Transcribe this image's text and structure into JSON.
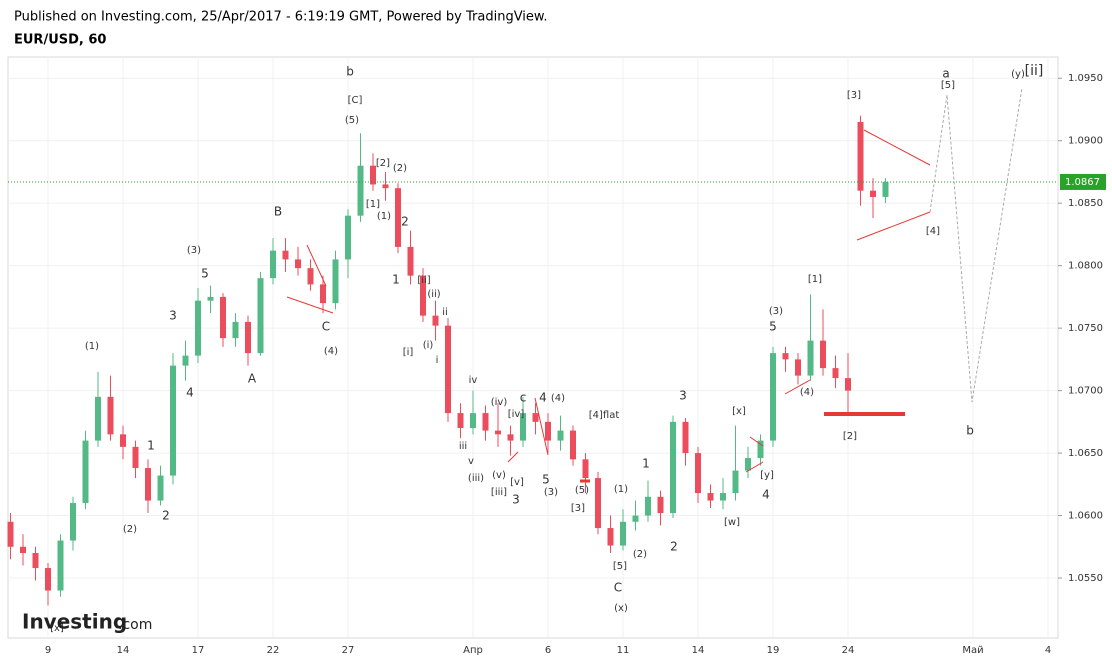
{
  "chart_data": {
    "type": "candlestick",
    "subtitle": "Published on Investing.com, 25/Apr/2017 - 6:19:19 GMT, Powered by TradingView.",
    "title": "EUR/USD, 60",
    "logo": "Investing",
    "logo_suffix": ".com",
    "up_color": "#53b987",
    "down_color": "#eb4d5c",
    "grid": true,
    "categories": [
      null,
      null,
      null,
      "9",
      null,
      null,
      null,
      null,
      null,
      "14",
      null,
      null,
      null,
      null,
      null,
      "17",
      null,
      null,
      null,
      null,
      null,
      "22",
      null,
      null,
      null,
      null,
      null,
      "27",
      null,
      null,
      null,
      null,
      null,
      null,
      null,
      null,
      null,
      "Апр",
      null,
      null,
      null,
      null,
      null,
      "6",
      null,
      null,
      null,
      null,
      null,
      "11",
      null,
      null,
      null,
      null,
      null,
      "14",
      null,
      null,
      null,
      null,
      null,
      "19",
      null,
      null,
      null,
      null,
      null,
      "24",
      null,
      null,
      null,
      null,
      null,
      null,
      null,
      null,
      null,
      "Май",
      null,
      null,
      null,
      null,
      null,
      "4"
    ],
    "open": [
      1.0595,
      1.0575,
      1.057,
      1.0558,
      1.054,
      1.058,
      1.061,
      1.066,
      1.0695,
      1.0665,
      1.0655,
      1.0638,
      1.0612,
      1.0632,
      1.072,
      1.0728,
      1.0772,
      1.0775,
      1.0742,
      1.0755,
      1.073,
      1.079,
      1.0812,
      1.0805,
      1.0798,
      1.0785,
      1.077,
      1.0805,
      1.084,
      1.088,
      1.0865,
      1.0862,
      1.0815,
      1.0792,
      1.076,
      1.0752,
      1.0682,
      1.067,
      1.0682,
      1.0668,
      1.0665,
      1.066,
      1.0682,
      1.0675,
      1.066,
      1.0668,
      1.0645,
      1.063,
      1.059,
      1.0576,
      1.0595,
      1.06,
      1.0615,
      1.0602,
      1.0675,
      1.065,
      1.0618,
      1.0612,
      1.0618,
      1.0636,
      1.0646,
      1.066,
      1.073,
      1.0725,
      1.0712,
      1.074,
      1.0718,
      1.071,
      1.0915,
      1.086,
      1.0855,
      null,
      null,
      null,
      null,
      null,
      null,
      null,
      null,
      null,
      null,
      null,
      null,
      null
    ],
    "high": [
      1.0602,
      1.0585,
      1.0575,
      1.0562,
      1.0585,
      1.0615,
      1.0668,
      1.0715,
      1.0712,
      1.0672,
      1.066,
      1.0645,
      1.064,
      1.073,
      1.074,
      1.0782,
      1.0784,
      1.0778,
      1.0762,
      1.076,
      1.0795,
      1.0822,
      1.0822,
      1.0815,
      1.0805,
      1.0792,
      1.0812,
      1.0845,
      1.0906,
      1.089,
      1.0875,
      1.0866,
      1.0828,
      1.0798,
      1.0772,
      1.0758,
      1.069,
      1.07,
      1.0688,
      1.069,
      1.0672,
      1.0695,
      1.069,
      1.0682,
      1.068,
      1.0672,
      1.065,
      1.0635,
      1.06,
      1.0605,
      1.0612,
      1.0628,
      1.062,
      1.068,
      1.0678,
      1.0655,
      1.0625,
      1.063,
      1.0672,
      1.0655,
      1.0665,
      1.0735,
      1.0735,
      1.073,
      1.0777,
      1.0765,
      1.0728,
      1.073,
      1.092,
      1.087,
      1.087,
      null,
      null,
      null,
      null,
      null,
      null,
      null,
      null,
      null,
      null,
      null,
      null,
      null
    ],
    "low": [
      1.0565,
      1.056,
      1.0548,
      1.0528,
      1.0535,
      1.0572,
      1.0605,
      1.0655,
      1.066,
      1.0645,
      1.063,
      1.0602,
      1.0608,
      1.0625,
      1.0708,
      1.0722,
      1.0762,
      1.0735,
      1.0735,
      1.072,
      1.0728,
      1.0785,
      1.0795,
      1.0792,
      1.078,
      1.0762,
      1.0765,
      1.079,
      1.0835,
      1.086,
      1.0852,
      1.081,
      1.0785,
      1.0755,
      1.074,
      1.0675,
      1.0662,
      1.0665,
      1.066,
      1.0655,
      1.0648,
      1.0655,
      1.0665,
      1.065,
      1.0652,
      1.064,
      1.0618,
      1.0585,
      1.057,
      1.0572,
      1.0588,
      1.0595,
      1.0592,
      1.0598,
      1.064,
      1.061,
      1.0606,
      1.0605,
      1.0612,
      1.063,
      1.064,
      1.0655,
      1.0715,
      1.0705,
      1.0708,
      1.0712,
      1.0702,
      1.068,
      1.0848,
      1.0838,
      1.085,
      null,
      null,
      null,
      null,
      null,
      null,
      null,
      null,
      null,
      null,
      null,
      null,
      null
    ],
    "close": [
      1.0575,
      1.057,
      1.0558,
      1.054,
      1.058,
      1.061,
      1.066,
      1.0695,
      1.0665,
      1.0655,
      1.0638,
      1.0612,
      1.0632,
      1.072,
      1.0728,
      1.0772,
      1.0775,
      1.0742,
      1.0755,
      1.073,
      1.079,
      1.0812,
      1.0805,
      1.0798,
      1.0785,
      1.077,
      1.0805,
      1.084,
      1.088,
      1.0865,
      1.0862,
      1.0815,
      1.0792,
      1.076,
      1.0752,
      1.0682,
      1.067,
      1.0682,
      1.0668,
      1.0665,
      1.066,
      1.0682,
      1.0675,
      1.066,
      1.0668,
      1.0645,
      1.063,
      1.059,
      1.0576,
      1.0595,
      1.06,
      1.0615,
      1.0602,
      1.0675,
      1.065,
      1.0618,
      1.0612,
      1.0618,
      1.0636,
      1.0646,
      1.066,
      1.073,
      1.0725,
      1.0712,
      1.074,
      1.0718,
      1.071,
      1.07,
      1.086,
      1.0855,
      1.0867,
      null,
      null,
      null,
      null,
      null,
      null,
      null,
      null,
      null,
      null,
      null,
      null,
      null
    ],
    "last_price": 1.0867,
    "last_price_color": "#27a327",
    "ylim": [
      1.0502,
      1.0967
    ],
    "yticks": [
      {
        "value": 1.055,
        "label": "1.0550"
      },
      {
        "value": 1.06,
        "label": "1.0600"
      },
      {
        "value": 1.065,
        "label": "1.0650"
      },
      {
        "value": 1.07,
        "label": "1.0700"
      },
      {
        "value": 1.075,
        "label": "1.0750"
      },
      {
        "value": 1.08,
        "label": "1.0800"
      },
      {
        "value": 1.085,
        "label": "1.0850"
      },
      {
        "value": 1.09,
        "label": "1.0900"
      },
      {
        "value": 1.095,
        "label": "1.0950"
      }
    ],
    "annotations": [
      "b",
      "[C]",
      "(5)",
      "[2]",
      "(2)",
      "[1]",
      "(1)",
      "2",
      "1",
      "[ii]",
      "(ii)",
      "ii",
      "(i)",
      "[i]",
      "i",
      "iv",
      "iii",
      "v",
      "(iv)",
      "[iv]",
      "c",
      "4",
      "(4)",
      "[4]flat",
      "(iii)",
      "(v)",
      "[v]",
      "[iii]",
      "3",
      "5",
      "(3)",
      "(5)",
      "[3]",
      "(1)",
      "1",
      "(2)",
      "2",
      "[5]",
      "C",
      "(x)",
      "3",
      "[x]",
      "[y]",
      "4",
      "[w]",
      "(3)",
      "5",
      "[1]",
      "(4)",
      "[2]",
      "[3]",
      "[4]",
      "a",
      "[5]",
      "b",
      "(y)",
      "[ii]",
      "B",
      "(3)",
      "5",
      "3",
      "(1)",
      "4",
      "A",
      "C",
      "(4)",
      "1",
      "2",
      "(2)",
      "[x]"
    ]
  }
}
